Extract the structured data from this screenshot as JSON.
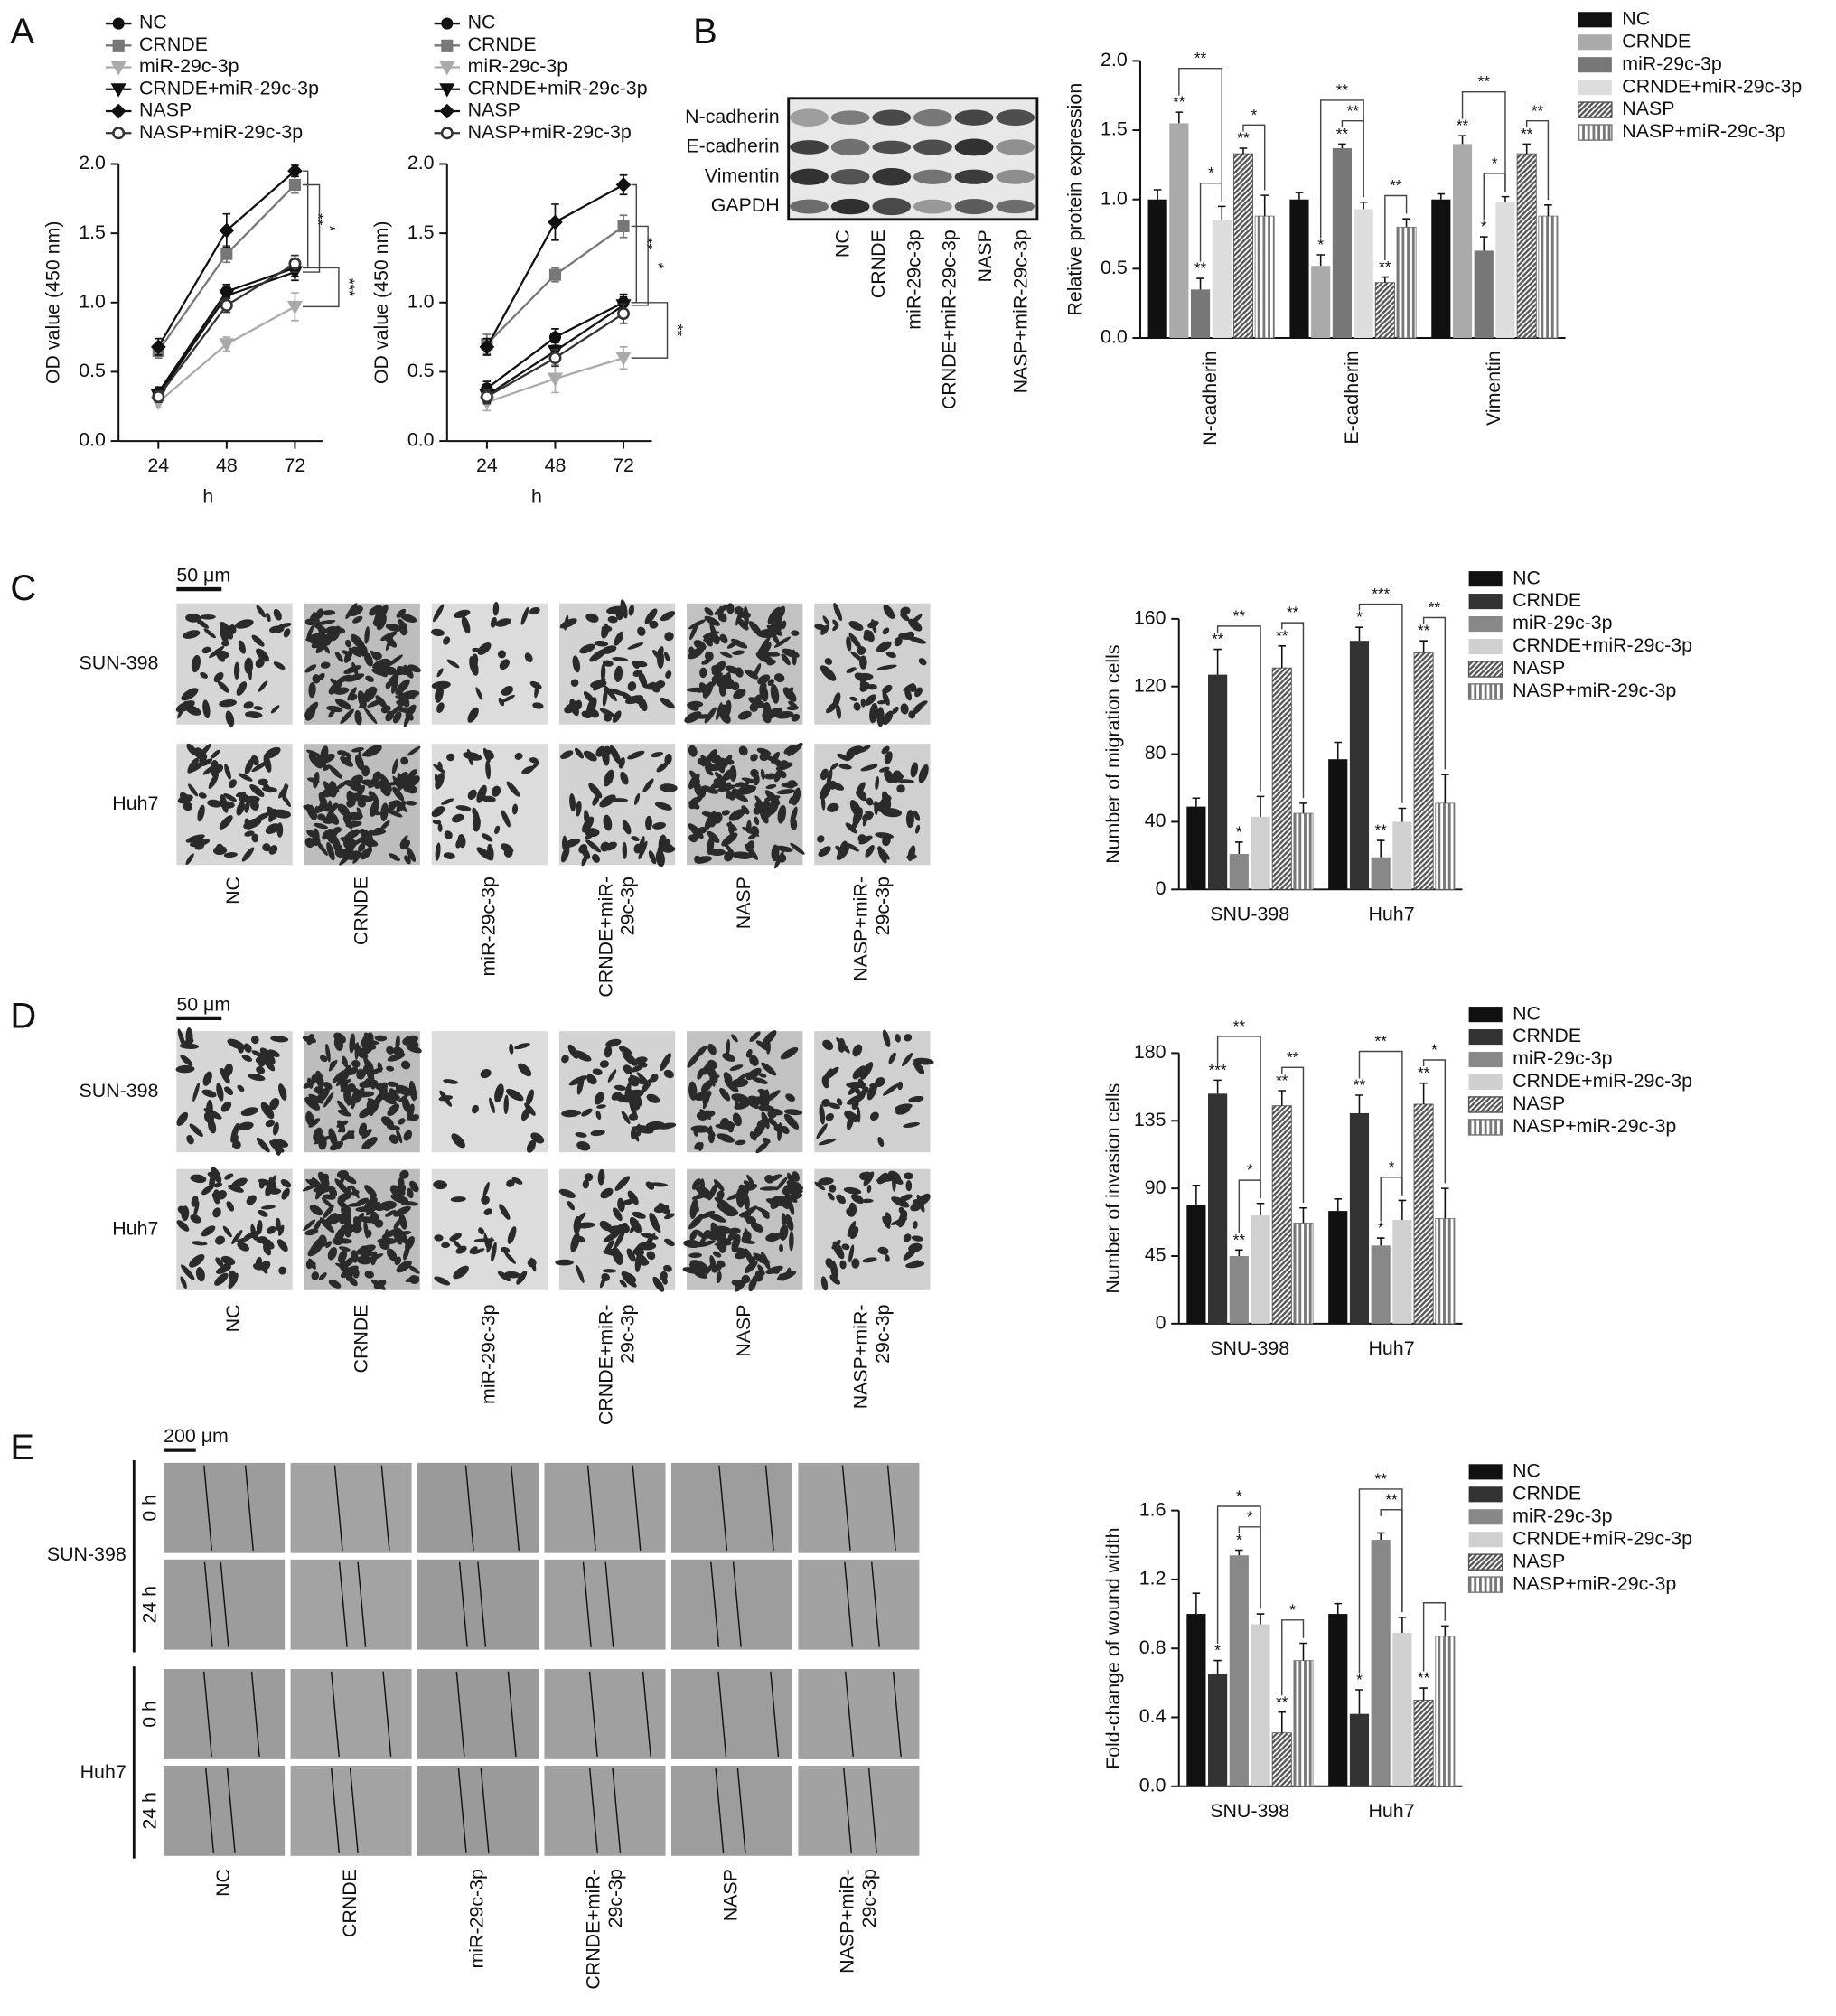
{
  "figure": {
    "panel_labels": [
      "A",
      "B",
      "C",
      "D",
      "E"
    ],
    "blot": {
      "proteins": [
        "N-cadherin",
        "E-cadherin",
        "Vimentin",
        "GAPDH"
      ],
      "lanes": [
        "NC",
        "CRNDE",
        "miR-29c-3p",
        "CRNDE+miR-29c-3p",
        "NASP",
        "NASP+miR-29c-3p"
      ]
    },
    "migration": {
      "scale": "50 μm",
      "rows": [
        "SUN-398",
        "Huh7"
      ],
      "columns": [
        "NC",
        "CRNDE",
        "miR-29c-3p",
        [
          "CRNDE+miR-",
          "29c-3p"
        ],
        "NASP",
        [
          "NASP+miR-",
          "29c-3p"
        ]
      ]
    },
    "invasion": {
      "scale": "50 μm",
      "rows": [
        "SUN-398",
        "Huh7"
      ],
      "columns": [
        "NC",
        "CRNDE",
        "miR-29c-3p",
        [
          "CRNDE+miR-",
          "29c-3p"
        ],
        "NASP",
        [
          "NASP+miR-",
          "29c-3p"
        ]
      ]
    },
    "wound": {
      "scale": "200 μm",
      "rows": [
        "SUN-398",
        "Huh7"
      ],
      "times": [
        "0 h",
        "24 h"
      ],
      "columns": [
        "NC",
        "CRNDE",
        "miR-29c-3p",
        [
          "CRNDE+miR-",
          "29c-3p"
        ],
        "NASP",
        [
          "NASP+miR-",
          "29c-3p"
        ]
      ]
    }
  },
  "chart_data": [
    {
      "type": "line",
      "x": [
        24,
        48,
        72
      ],
      "xlim": [
        10,
        82
      ],
      "xticks": [
        24,
        48,
        72
      ],
      "xlabel": "h",
      "ylabel": "OD value (450 nm)",
      "ylim": [
        0,
        2
      ],
      "yticks": [
        {
          "value": 0,
          "label": "0.0"
        },
        0.5,
        {
          "value": 1,
          "label": "1.0"
        },
        1.5,
        {
          "value": 2,
          "label": "2.0"
        }
      ],
      "series": [
        {
          "name": "NC",
          "color": "#111111",
          "marker": "circle",
          "values": [
            0.35,
            1.08,
            1.25
          ],
          "errors": [
            0.04,
            0.05,
            0.06
          ]
        },
        {
          "name": "CRNDE",
          "color": "#777777",
          "marker": "square",
          "values": [
            0.65,
            1.35,
            1.85
          ],
          "errors": [
            0.05,
            0.06,
            0.06
          ]
        },
        {
          "name": "miR-29c-3p",
          "color": "#aaaaaa",
          "marker": "triangle-down",
          "values": [
            0.28,
            0.7,
            0.97
          ],
          "errors": [
            0.04,
            0.05,
            0.1
          ]
        },
        {
          "name": "CRNDE+miR-29c-3p",
          "color": "#111111",
          "marker": "triangle-down",
          "values": [
            0.33,
            1.05,
            1.22
          ],
          "errors": [
            0.04,
            0.05,
            0.06
          ]
        },
        {
          "name": "NASP",
          "color": "#111111",
          "marker": "diamond",
          "values": [
            0.68,
            1.52,
            1.95
          ],
          "errors": [
            0.06,
            0.12,
            0.04
          ]
        },
        {
          "name": "NASP+miR-29c-3p",
          "color": "#333333",
          "marker": "open-circle",
          "values": [
            0.32,
            0.98,
            1.28
          ],
          "errors": [
            0.04,
            0.05,
            0.06
          ]
        }
      ],
      "brackets": [
        "**",
        "*",
        "***"
      ]
    },
    {
      "type": "line",
      "x": [
        24,
        48,
        72
      ],
      "xlim": [
        10,
        82
      ],
      "xticks": [
        24,
        48,
        72
      ],
      "xlabel": "h",
      "ylabel": "OD value (450 nm)",
      "ylim": [
        0,
        2
      ],
      "yticks": [
        {
          "value": 0,
          "label": "0.0"
        },
        0.5,
        {
          "value": 1,
          "label": "1.0"
        },
        1.5,
        {
          "value": 2,
          "label": "2.0"
        }
      ],
      "series": [
        {
          "name": "NC",
          "color": "#111111",
          "marker": "circle",
          "values": [
            0.38,
            0.75,
            1.0
          ],
          "errors": [
            0.05,
            0.06,
            0.06
          ]
        },
        {
          "name": "CRNDE",
          "color": "#777777",
          "marker": "square",
          "values": [
            0.7,
            1.2,
            1.55
          ],
          "errors": [
            0.07,
            0.05,
            0.08
          ]
        },
        {
          "name": "miR-29c-3p",
          "color": "#aaaaaa",
          "marker": "triangle-down",
          "values": [
            0.28,
            0.45,
            0.6
          ],
          "errors": [
            0.06,
            0.1,
            0.08
          ]
        },
        {
          "name": "CRNDE+miR-29c-3p",
          "color": "#111111",
          "marker": "triangle-down",
          "values": [
            0.33,
            0.65,
            0.98
          ],
          "errors": [
            0.05,
            0.06,
            0.06
          ]
        },
        {
          "name": "NASP",
          "color": "#111111",
          "marker": "diamond",
          "values": [
            0.68,
            1.58,
            1.85
          ],
          "errors": [
            0.06,
            0.13,
            0.07
          ]
        },
        {
          "name": "NASP+miR-29c-3p",
          "color": "#333333",
          "marker": "open-circle",
          "values": [
            0.32,
            0.6,
            0.92
          ],
          "errors": [
            0.05,
            0.06,
            0.07
          ]
        }
      ],
      "brackets": [
        "**",
        "*",
        "**"
      ]
    },
    {
      "type": "bar",
      "categories": [
        "N-cadherin",
        "E-cadherin",
        "Vimentin"
      ],
      "ylabel": "Relative protein expression",
      "ylim": [
        0,
        2
      ],
      "yticks": [
        {
          "value": 0,
          "label": "0.0"
        },
        0.5,
        {
          "value": 1,
          "label": "1.0"
        },
        1.5,
        {
          "value": 2,
          "label": "2.0"
        }
      ],
      "series": [
        {
          "name": "NC",
          "color": "#111111",
          "values": [
            1.0,
            1.0,
            1.0
          ],
          "errors": [
            0.07,
            0.05,
            0.04
          ],
          "stars": [
            null,
            null,
            null
          ]
        },
        {
          "name": "CRNDE",
          "color": "#aaaaaa",
          "values": [
            1.55,
            0.52,
            1.4
          ],
          "errors": [
            0.08,
            0.08,
            0.06
          ],
          "stars": [
            "**",
            "*",
            "**"
          ]
        },
        {
          "name": "miR-29c-3p",
          "color": "#777777",
          "values": [
            0.35,
            1.37,
            0.63
          ],
          "errors": [
            0.08,
            0.03,
            0.1
          ],
          "stars": [
            "**",
            "**",
            "*"
          ]
        },
        {
          "name": "CRNDE+miR-29c-3p",
          "color": "#dddddd",
          "values": [
            0.85,
            0.93,
            0.98
          ],
          "errors": [
            0.1,
            0.05,
            0.04
          ],
          "stars": [
            null,
            null,
            null
          ]
        },
        {
          "name": "NASP",
          "color": "#555555",
          "pattern": "diagonal",
          "values": [
            1.33,
            0.4,
            1.33
          ],
          "errors": [
            0.04,
            0.04,
            0.07
          ],
          "stars": [
            "**",
            "**",
            "**"
          ]
        },
        {
          "name": "NASP+miR-29c-3p",
          "color": "#777777",
          "pattern": "vertical",
          "values": [
            0.88,
            0.8,
            0.88
          ],
          "errors": [
            0.15,
            0.06,
            0.08
          ],
          "stars": [
            null,
            null,
            null
          ]
        }
      ],
      "brackets": [
        [
          "**",
          "*",
          "*"
        ],
        [
          "**",
          "**",
          "**"
        ],
        [
          "**",
          "*",
          "**"
        ]
      ]
    },
    {
      "type": "bar",
      "categories": [
        "SNU-398",
        "Huh7"
      ],
      "ylabel": "Number of migration cells",
      "ylim": [
        0,
        160
      ],
      "yticks": [
        0,
        40,
        80,
        120,
        160
      ],
      "series": [
        {
          "name": "NC",
          "color": "#111111",
          "values": [
            49,
            77
          ],
          "errors": [
            5,
            10
          ],
          "stars": [
            null,
            null
          ]
        },
        {
          "name": "CRNDE",
          "color": "#333333",
          "values": [
            127,
            147
          ],
          "errors": [
            15,
            8
          ],
          "stars": [
            "**",
            "*"
          ]
        },
        {
          "name": "miR-29c-3p",
          "color": "#888888",
          "values": [
            21,
            19
          ],
          "errors": [
            7,
            10
          ],
          "stars": [
            "*",
            "**"
          ]
        },
        {
          "name": "CRNDE+miR-29c-3p",
          "color": "#d0d0d0",
          "values": [
            43,
            40
          ],
          "errors": [
            12,
            8
          ],
          "stars": [
            null,
            null
          ]
        },
        {
          "name": "NASP",
          "color": "#555555",
          "pattern": "diagonal",
          "values": [
            131,
            140
          ],
          "errors": [
            13,
            7
          ],
          "stars": [
            "**",
            "**"
          ]
        },
        {
          "name": "NASP+miR-29c-3p",
          "color": "#777777",
          "pattern": "vertical",
          "values": [
            45,
            51
          ],
          "errors": [
            6,
            17
          ],
          "stars": [
            null,
            null
          ]
        }
      ],
      "brackets": [
        [
          "**",
          "**"
        ],
        [
          "***",
          "**"
        ]
      ]
    },
    {
      "type": "bar",
      "categories": [
        "SNU-398",
        "Huh7"
      ],
      "ylabel": "Number of invasion cells",
      "ylim": [
        0,
        180
      ],
      "yticks": [
        0,
        45,
        90,
        135,
        180
      ],
      "series": [
        {
          "name": "NC",
          "color": "#111111",
          "values": [
            79,
            75
          ],
          "errors": [
            13,
            8
          ],
          "stars": [
            null,
            null
          ]
        },
        {
          "name": "CRNDE",
          "color": "#333333",
          "values": [
            153,
            140
          ],
          "errors": [
            9,
            12
          ],
          "stars": [
            "***",
            "**"
          ]
        },
        {
          "name": "miR-29c-3p",
          "color": "#888888",
          "values": [
            45,
            52
          ],
          "errors": [
            4,
            5
          ],
          "stars": [
            "**",
            "*"
          ]
        },
        {
          "name": "CRNDE+miR-29c-3p",
          "color": "#d0d0d0",
          "values": [
            72,
            69
          ],
          "errors": [
            8,
            13
          ],
          "stars": [
            null,
            null
          ]
        },
        {
          "name": "NASP",
          "color": "#555555",
          "pattern": "diagonal",
          "values": [
            145,
            146
          ],
          "errors": [
            10,
            14
          ],
          "stars": [
            "**",
            "**"
          ]
        },
        {
          "name": "NASP+miR-29c-3p",
          "color": "#777777",
          "pattern": "vertical",
          "values": [
            67,
            70
          ],
          "errors": [
            10,
            20
          ],
          "stars": [
            null,
            null
          ]
        }
      ],
      "brackets": [
        [
          "**",
          "*",
          "**"
        ],
        [
          "**",
          "*",
          "*"
        ]
      ]
    },
    {
      "type": "bar",
      "categories": [
        "SNU-398",
        "Huh7"
      ],
      "ylabel": "Fold-change of wound width",
      "ylim": [
        0,
        1.6
      ],
      "yticks": [
        {
          "value": 0,
          "label": "0.0"
        },
        0.4,
        0.8,
        1.2,
        1.6
      ],
      "series": [
        {
          "name": "NC",
          "color": "#111111",
          "values": [
            1.0,
            1.0
          ],
          "errors": [
            0.12,
            0.06
          ],
          "stars": [
            null,
            null
          ]
        },
        {
          "name": "CRNDE",
          "color": "#333333",
          "values": [
            0.65,
            0.42
          ],
          "errors": [
            0.08,
            0.14
          ],
          "stars": [
            "*",
            "*"
          ]
        },
        {
          "name": "miR-29c-3p",
          "color": "#888888",
          "values": [
            1.34,
            1.43
          ],
          "errors": [
            0.03,
            0.04
          ],
          "stars": [
            "*",
            null
          ]
        },
        {
          "name": "CRNDE+miR-29c-3p",
          "color": "#d0d0d0",
          "values": [
            0.94,
            0.89
          ],
          "errors": [
            0.06,
            0.09
          ],
          "stars": [
            null,
            null
          ]
        },
        {
          "name": "NASP",
          "color": "#555555",
          "pattern": "diagonal",
          "values": [
            0.31,
            0.5
          ],
          "errors": [
            0.12,
            0.07
          ],
          "stars": [
            "**",
            "**"
          ]
        },
        {
          "name": "NASP+miR-29c-3p",
          "color": "#777777",
          "pattern": "vertical",
          "values": [
            0.73,
            0.87
          ],
          "errors": [
            0.1,
            0.06
          ],
          "stars": [
            null,
            null
          ]
        }
      ],
      "brackets": [
        [
          "*",
          "*",
          "*"
        ],
        [
          "**",
          "**",
          null
        ]
      ]
    }
  ]
}
